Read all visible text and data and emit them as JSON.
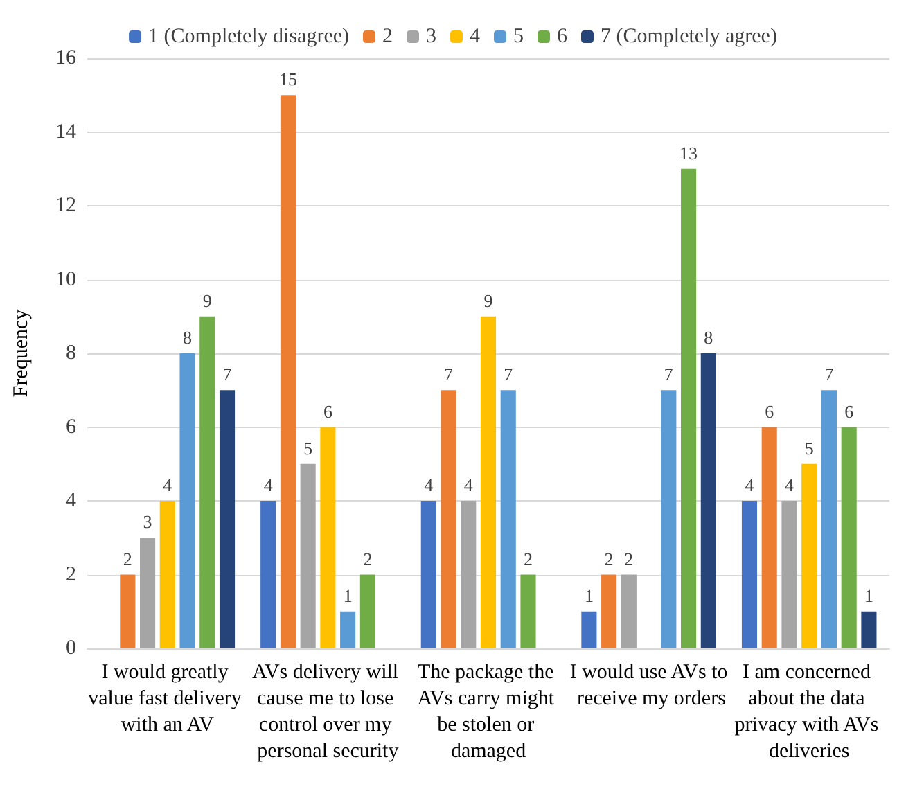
{
  "chart_data": {
    "type": "bar",
    "ylabel": "Frequency",
    "categories": [
      "I would greatly value fast delivery with an AV",
      "AVs delivery will cause me to lose control over my personal security",
      "The package the AVs carry might be stolen or damaged",
      "I would use AVs to receive my orders",
      "I am concerned about the data privacy with AVs deliveries"
    ],
    "series": [
      {
        "name": "1 (Completely disagree)",
        "color": "#4472c4",
        "values": [
          null,
          4,
          4,
          1,
          4
        ]
      },
      {
        "name": "2",
        "color": "#ed7d31",
        "values": [
          2,
          15,
          7,
          2,
          6
        ]
      },
      {
        "name": "3",
        "color": "#a5a5a5",
        "values": [
          3,
          5,
          4,
          2,
          4
        ]
      },
      {
        "name": "4",
        "color": "#ffc000",
        "values": [
          4,
          6,
          9,
          null,
          5
        ]
      },
      {
        "name": "5",
        "color": "#5b9bd5",
        "values": [
          8,
          1,
          7,
          7,
          7
        ]
      },
      {
        "name": "6",
        "color": "#70ad47",
        "values": [
          9,
          2,
          2,
          13,
          6
        ]
      },
      {
        "name": "7 (Completely agree)",
        "color": "#264478",
        "values": [
          7,
          null,
          null,
          8,
          1
        ]
      }
    ],
    "ylim": [
      0,
      16
    ],
    "yticks": [
      0,
      2,
      4,
      6,
      8,
      10,
      12,
      14,
      16
    ],
    "grid": "y",
    "legend": "top",
    "data_labels": true
  }
}
